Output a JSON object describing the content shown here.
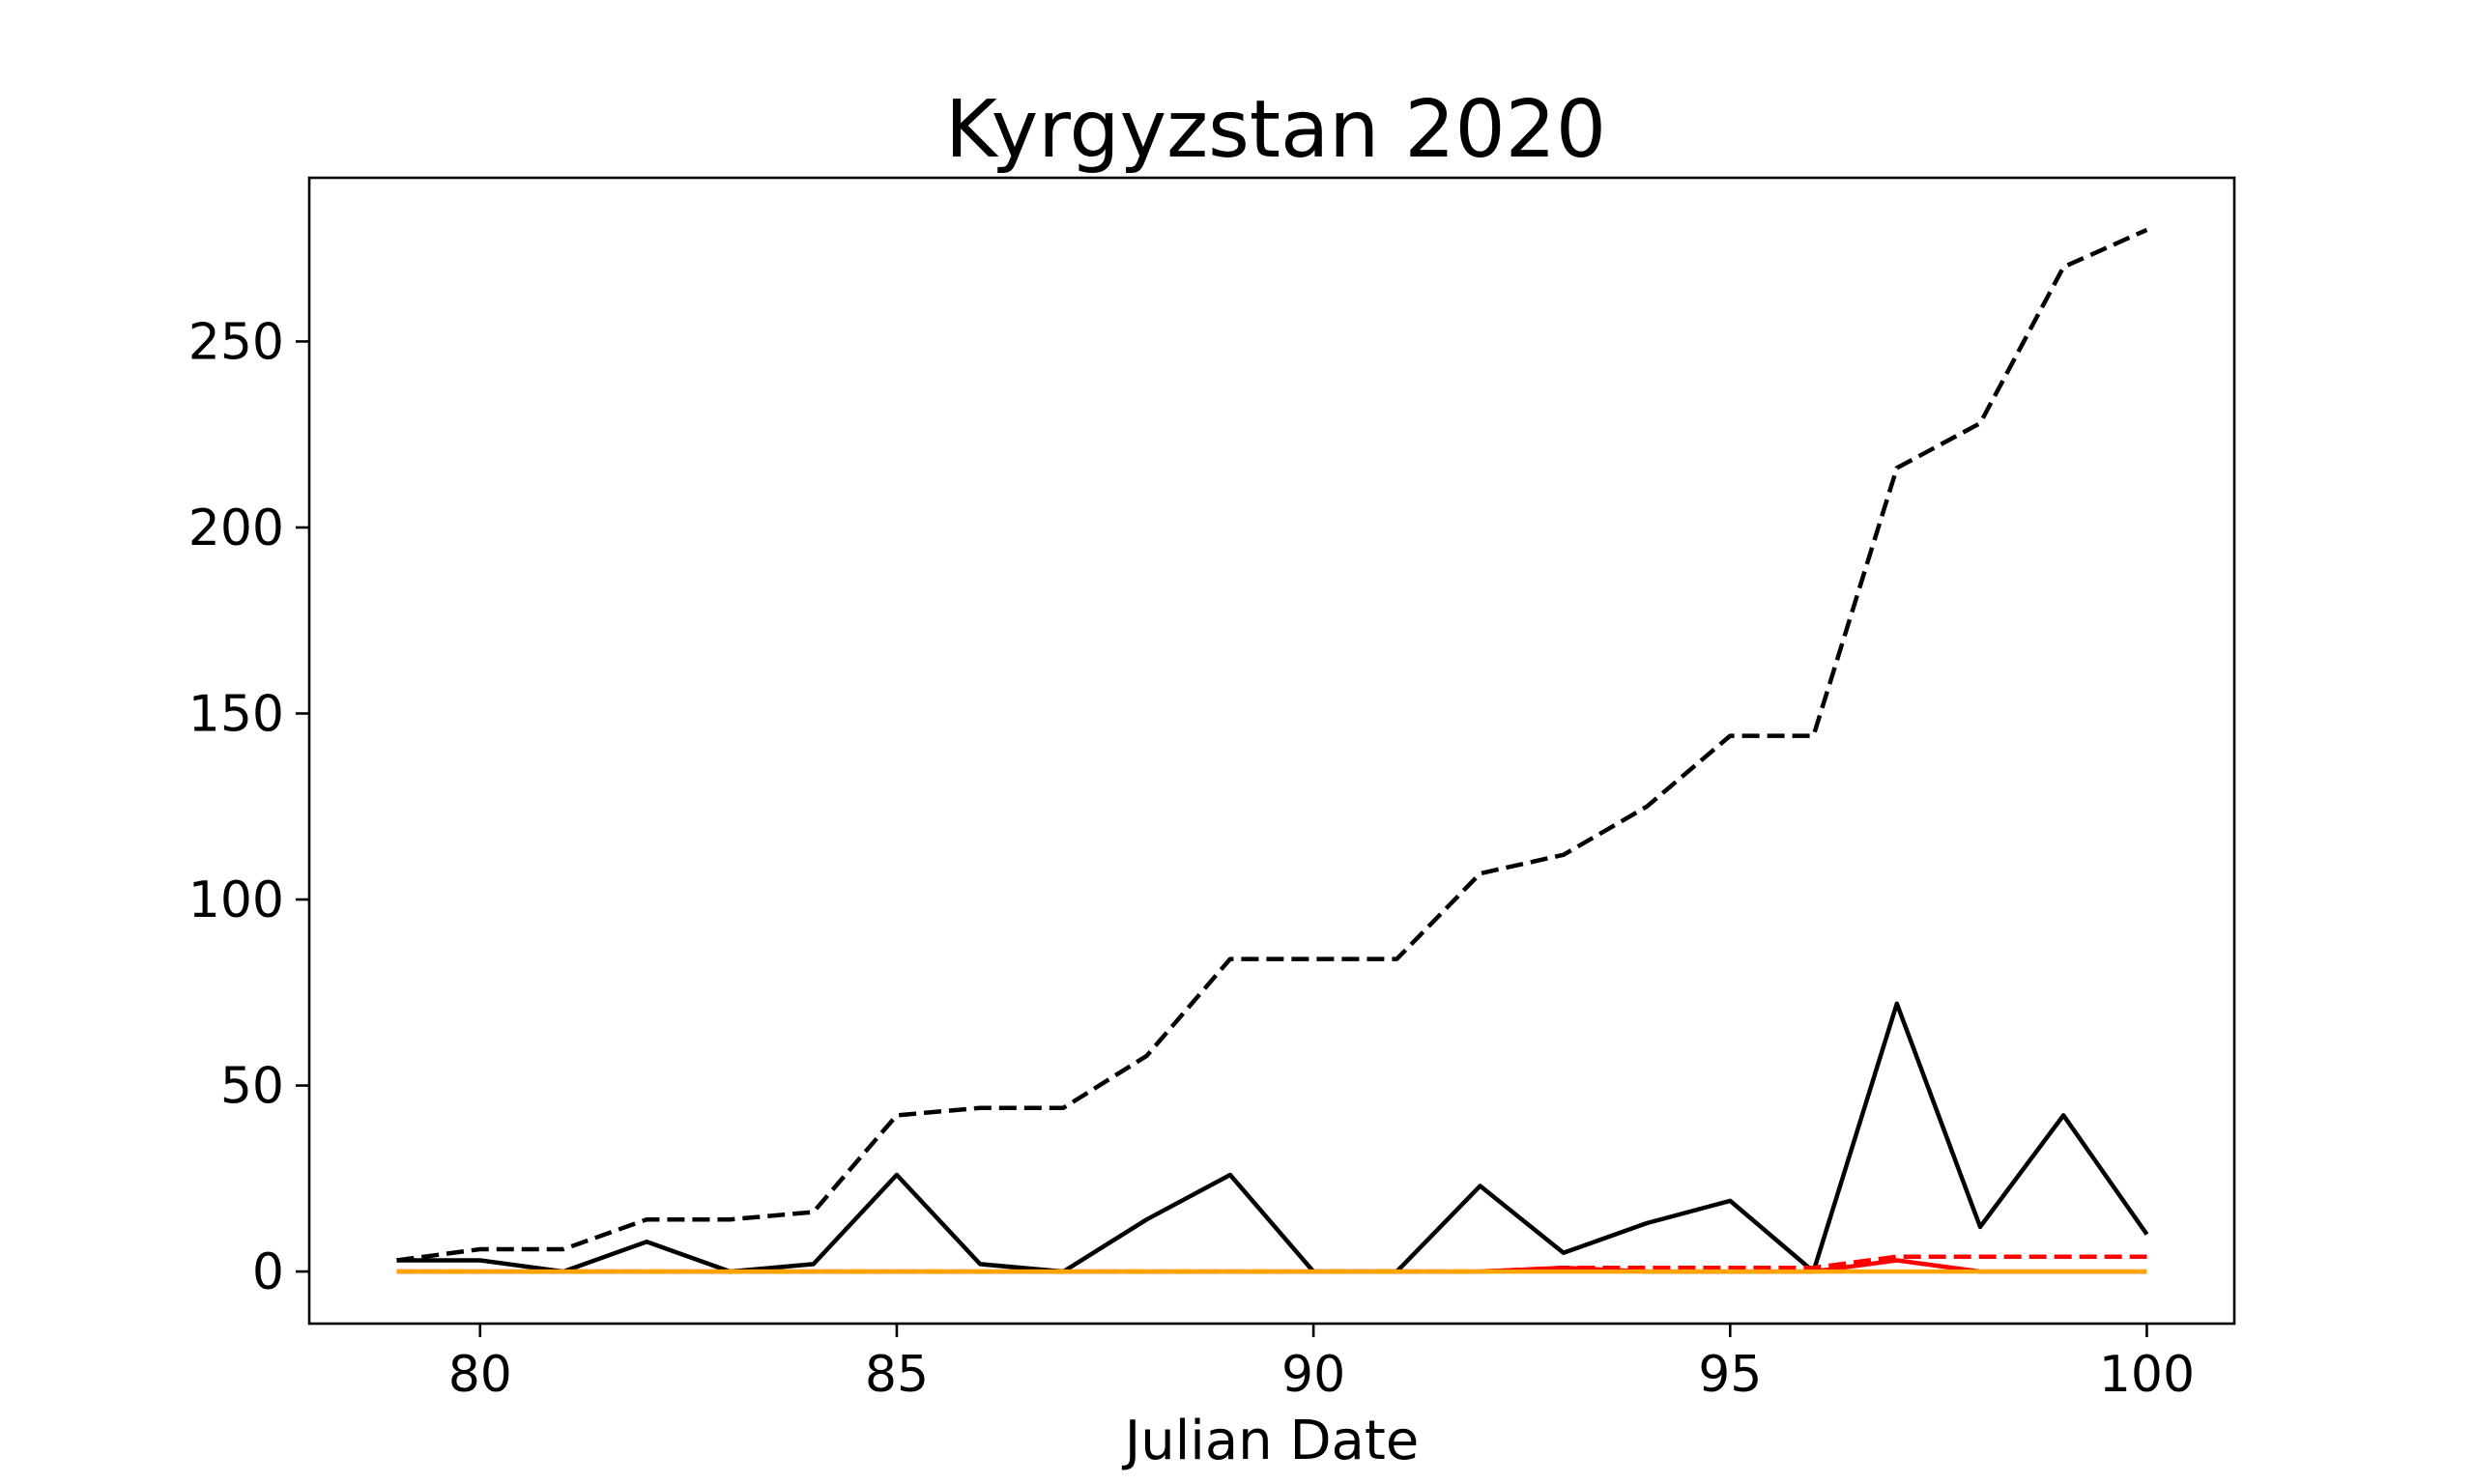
{
  "chart_data": {
    "type": "line",
    "title": "Kyrgyzstan 2020",
    "xlabel": "Julian Date",
    "ylabel": "",
    "xlim": [
      77.95,
      101.05
    ],
    "ylim": [
      -14,
      294
    ],
    "xticks": [
      80,
      85,
      90,
      95,
      100
    ],
    "yticks": [
      0,
      50,
      100,
      150,
      200,
      250
    ],
    "grid": false,
    "x": [
      79,
      80,
      81,
      82,
      83,
      84,
      85,
      86,
      87,
      88,
      89,
      90,
      91,
      92,
      93,
      94,
      95,
      96,
      97,
      98,
      99,
      100
    ],
    "series": [
      {
        "color": "#000000",
        "dash": "dashed",
        "values": [
          3,
          6,
          6,
          14,
          14,
          16,
          42,
          44,
          44,
          58,
          84,
          84,
          84,
          107,
          112,
          125,
          144,
          144,
          216,
          228,
          270,
          280
        ]
      },
      {
        "color": "#000000",
        "dash": "solid",
        "values": [
          3,
          3,
          0,
          8,
          0,
          2,
          26,
          2,
          0,
          14,
          26,
          0,
          0,
          23,
          5,
          13,
          19,
          0,
          72,
          12,
          42,
          10
        ]
      },
      {
        "color": "#ff0000",
        "dash": "dashed",
        "values": [
          0,
          0,
          0,
          0,
          0,
          0,
          0,
          0,
          0,
          0,
          0,
          0,
          0,
          0,
          1,
          1,
          1,
          1,
          4,
          4,
          4,
          4
        ]
      },
      {
        "color": "#ff0000",
        "dash": "solid",
        "values": [
          0,
          0,
          0,
          0,
          0,
          0,
          0,
          0,
          0,
          0,
          0,
          0,
          0,
          0,
          1,
          0,
          0,
          0,
          3,
          0,
          0,
          0
        ]
      },
      {
        "color": "#ffa500",
        "dash": "solid",
        "values": [
          0,
          0,
          0,
          0,
          0,
          0,
          0,
          0,
          0,
          0,
          0,
          0,
          0,
          0,
          0,
          0,
          0,
          0,
          0,
          0,
          0,
          0
        ]
      }
    ]
  }
}
